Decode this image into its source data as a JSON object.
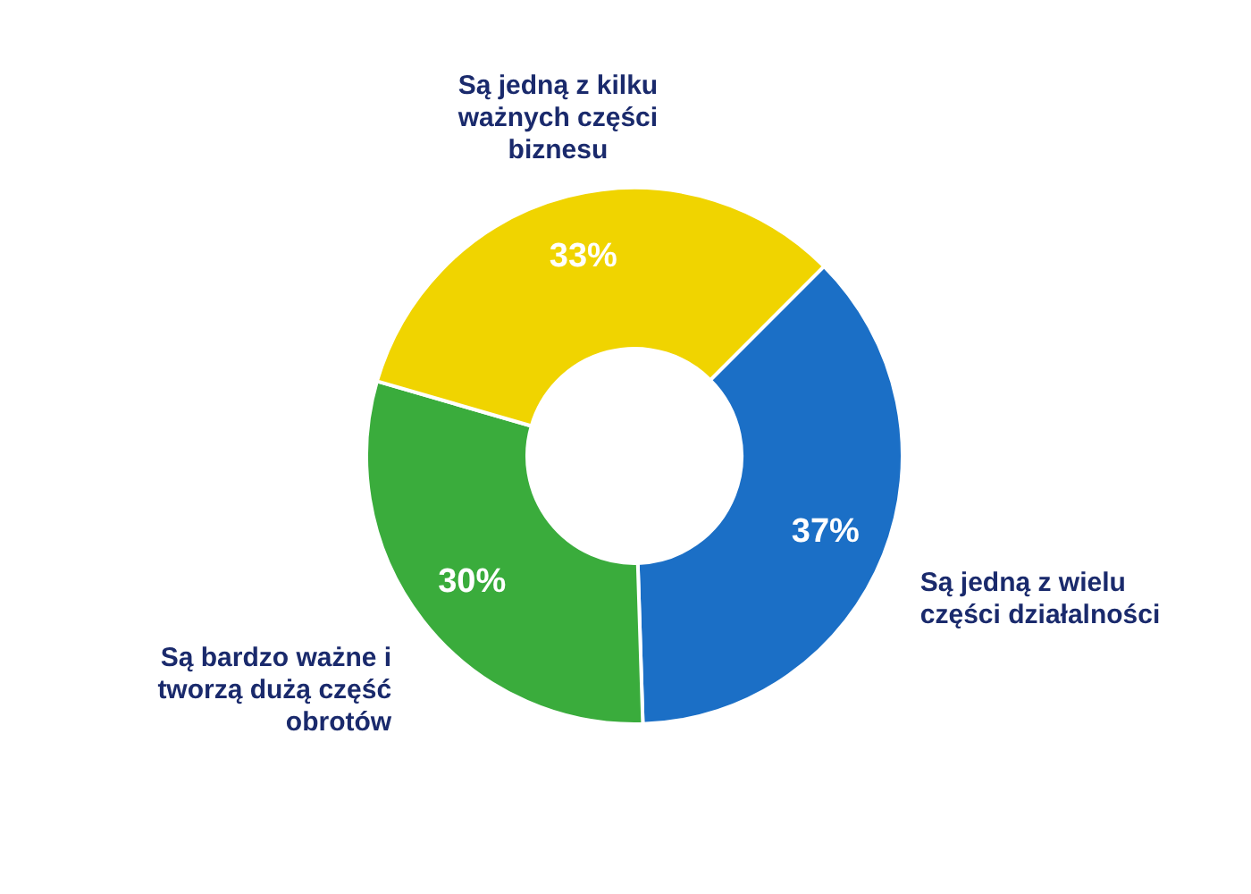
{
  "chart_data": {
    "type": "donut",
    "categories": [
      "Są jedną z wielu części działalności",
      "Są bardzo ważne i tworzą dużą część obrotów",
      "Są jedną z kilku ważnych części biznesu"
    ],
    "values": [
      37,
      30,
      33
    ],
    "value_labels": [
      "37%",
      "30%",
      "33%"
    ],
    "colors": [
      "#1b6fc6",
      "#3aac3c",
      "#f0d400"
    ]
  }
}
